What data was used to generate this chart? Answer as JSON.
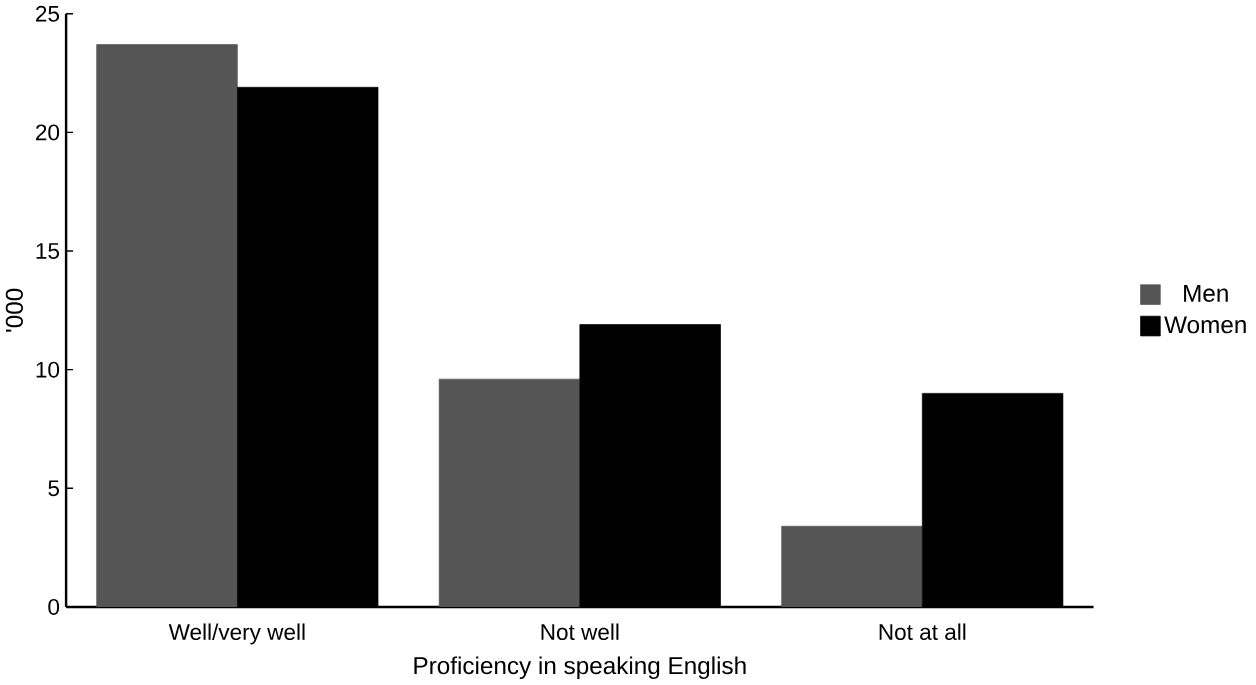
{
  "chart_data": {
    "type": "bar",
    "xlabel": "Proficiency in speaking English",
    "ylabel": "'000",
    "categories": [
      "Well/very well",
      "Not well",
      "Not at all"
    ],
    "series": [
      {
        "name": "Men",
        "color": "#555555",
        "values": [
          23.7,
          9.6,
          3.4
        ]
      },
      {
        "name": "Women",
        "color": "#000000",
        "values": [
          21.9,
          11.9,
          9.0
        ]
      }
    ],
    "ylim": [
      0,
      25
    ],
    "yticks": [
      0,
      5,
      10,
      15,
      20,
      25
    ],
    "grid": false,
    "legend": "right"
  }
}
